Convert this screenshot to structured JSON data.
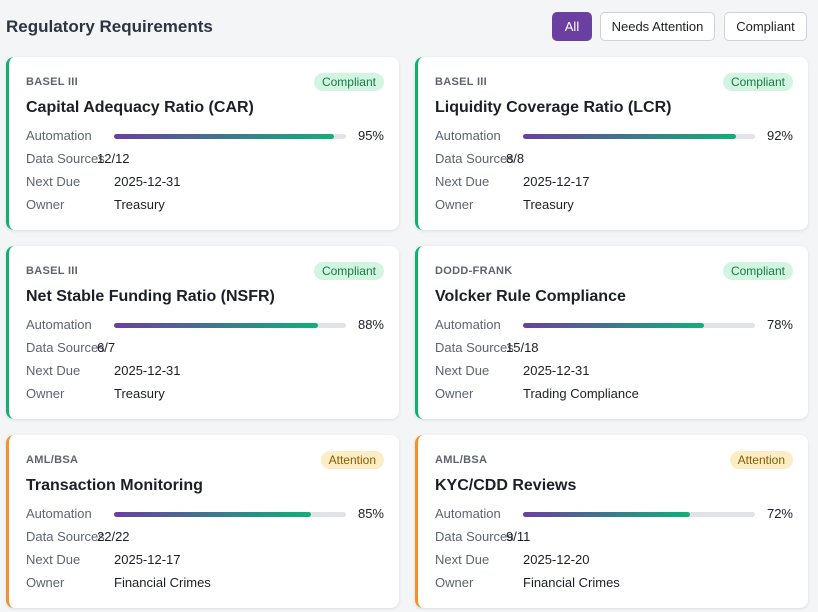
{
  "header": {
    "title": "Regulatory Requirements",
    "filters": [
      "All",
      "Needs Attention",
      "Compliant"
    ],
    "active_filter": 0
  },
  "field_labels": [
    "Automation",
    "Data Sources",
    "Next Due",
    "Owner"
  ],
  "cards": [
    {
      "category": "BASEL III",
      "status": "Compliant",
      "color": "#10b06e",
      "title": "Capital Adequacy Ratio (CAR)",
      "automation": {
        "value": 95,
        "label": "95%"
      },
      "data_sources": "12/12",
      "next_due": "2025-12-31",
      "owner": "Treasury"
    },
    {
      "category": "BASEL III",
      "status": "Compliant",
      "color": "#10b06e",
      "title": "Liquidity Coverage Ratio (LCR)",
      "automation": {
        "value": 92,
        "label": "92%"
      },
      "data_sources": "8/8",
      "next_due": "2025-12-17",
      "owner": "Treasury"
    },
    {
      "category": "BASEL III",
      "status": "Compliant",
      "color": "#10b06e",
      "title": "Net Stable Funding Ratio (NSFR)",
      "automation": {
        "value": 88,
        "label": "88%"
      },
      "data_sources": "6/7",
      "next_due": "2025-12-31",
      "owner": "Treasury"
    },
    {
      "category": "DODD-FRANK",
      "status": "Compliant",
      "color": "#10b06e",
      "title": "Volcker Rule Compliance",
      "automation": {
        "value": 78,
        "label": "78%"
      },
      "data_sources": "15/18",
      "next_due": "2025-12-31",
      "owner": "Trading Compliance"
    },
    {
      "category": "AML/BSA",
      "status": "Attention",
      "color": "#f0932b",
      "title": "Transaction Monitoring",
      "automation": {
        "value": 85,
        "label": "85%"
      },
      "data_sources": "22/22",
      "next_due": "2025-12-17",
      "owner": "Financial Crimes"
    },
    {
      "category": "AML/BSA",
      "status": "Attention",
      "color": "#f0932b",
      "title": "KYC/CDD Reviews",
      "automation": {
        "value": 72,
        "label": "72%"
      },
      "data_sources": "9/11",
      "next_due": "2025-12-20",
      "owner": "Financial Crimes"
    }
  ]
}
